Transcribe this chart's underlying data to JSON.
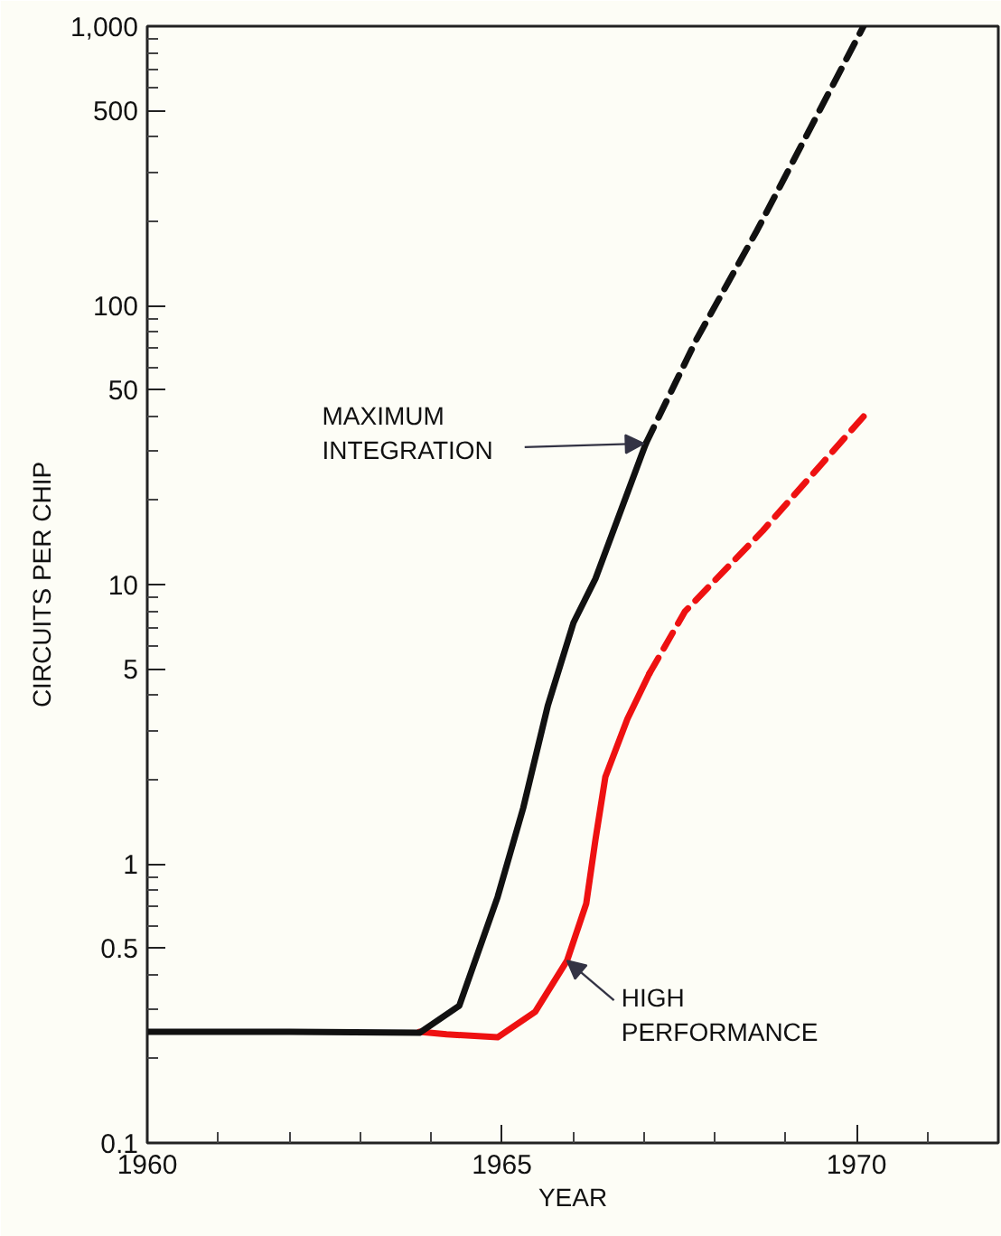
{
  "chart_data": {
    "type": "line",
    "xlabel": "YEAR",
    "ylabel": "CIRCUITS PER CHIP",
    "log": "y",
    "grid": false,
    "xlim": [
      1960,
      1972
    ],
    "ylim": [
      0.1,
      1000
    ],
    "xticks": [
      1960,
      {
        "value": 1961,
        "label": null
      },
      {
        "value": 1962,
        "label": null
      },
      {
        "value": 1963,
        "label": null
      },
      {
        "value": 1964,
        "label": null
      },
      1965,
      {
        "value": 1966,
        "label": null
      },
      {
        "value": 1967,
        "label": null
      },
      {
        "value": 1968,
        "label": null
      },
      {
        "value": 1969,
        "label": null
      },
      1970,
      {
        "value": 1971,
        "label": null
      }
    ],
    "yticks": [
      0.1,
      {
        "value": 0.2,
        "label": null
      },
      {
        "value": 0.3,
        "label": null
      },
      {
        "value": 0.4,
        "label": null
      },
      0.5,
      {
        "value": 0.6,
        "label": null
      },
      {
        "value": 0.7,
        "label": null
      },
      {
        "value": 0.8,
        "label": null
      },
      {
        "value": 0.9,
        "label": null
      },
      1,
      {
        "value": 2,
        "label": null
      },
      {
        "value": 3,
        "label": null
      },
      {
        "value": 4,
        "label": null
      },
      5,
      {
        "value": 6,
        "label": null
      },
      {
        "value": 7,
        "label": null
      },
      {
        "value": 8,
        "label": null
      },
      {
        "value": 9,
        "label": null
      },
      10,
      {
        "value": 20,
        "label": null
      },
      {
        "value": 30,
        "label": null
      },
      {
        "value": 40,
        "label": null
      },
      50,
      {
        "value": 60,
        "label": null
      },
      {
        "value": 70,
        "label": null
      },
      {
        "value": 80,
        "label": null
      },
      {
        "value": 90,
        "label": null
      },
      100,
      {
        "value": 200,
        "label": null
      },
      {
        "value": 300,
        "label": null
      },
      {
        "value": 400,
        "label": null
      },
      500,
      {
        "value": 600,
        "label": null
      },
      {
        "value": 700,
        "label": null
      },
      {
        "value": 800,
        "label": null
      },
      {
        "value": 900,
        "label": null
      },
      {
        "value": 1000,
        "label": "1,000"
      }
    ],
    "series": [
      {
        "color": "#ee1111",
        "line_style": "solid",
        "x": [
          1963.84,
          1964.22,
          1964.94,
          1965.47,
          1965.92,
          1966.19,
          1966.32,
          1966.46,
          1966.77,
          1967.08
        ],
        "values": [
          0.25,
          0.245,
          0.239,
          0.295,
          0.45,
          0.72,
          1.22,
          2.05,
          3.3,
          4.8
        ]
      },
      {
        "color": "#ee1111",
        "line_style": "dashed",
        "x": [
          1967.08,
          1967.58,
          1968.68,
          1970.1
        ],
        "values": [
          4.8,
          8.0,
          15.6,
          40
        ]
      },
      {
        "color": "#111111",
        "line_style": "solid",
        "x": [
          1960,
          1962,
          1963.84,
          1964.4,
          1964.94,
          1965.3,
          1965.65,
          1966.01,
          1966.32,
          1967.03
        ],
        "values": [
          0.25,
          0.25,
          0.248,
          0.31,
          0.76,
          1.58,
          3.7,
          7.3,
          10.5,
          32
        ]
      },
      {
        "color": "#111111",
        "line_style": "dashed",
        "x": [
          1967.03,
          1967.75,
          1968.6,
          1970.1
        ],
        "values": [
          32,
          76,
          186,
          1000
        ]
      }
    ],
    "annotations": [
      {
        "text": "MAXIMUM\nINTEGRATION",
        "x": 1967.0,
        "y": 32
      },
      {
        "text": "HIGH\nPERFORMANCE",
        "x": 1965.92,
        "y": 0.45
      }
    ]
  }
}
